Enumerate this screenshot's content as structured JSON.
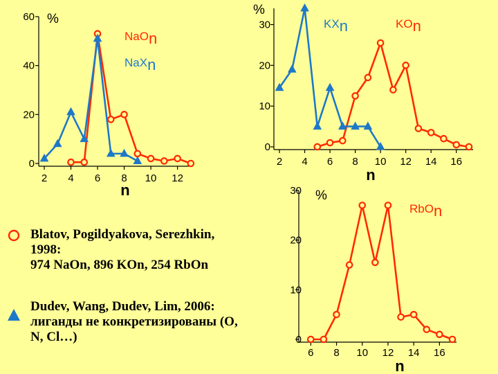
{
  "colors": {
    "red": "#ff2a00",
    "blue": "#1e78c8",
    "background": "#ffff99"
  },
  "chart_data": [
    {
      "type": "line",
      "y_unit_label": "%",
      "xlabel": "n",
      "x_ticks": [
        2,
        4,
        6,
        8,
        10,
        12
      ],
      "y_ticks": [
        0,
        20,
        40,
        60
      ],
      "xlim": [
        2,
        12.8
      ],
      "ylim": [
        0,
        60
      ],
      "legend_labels": [
        {
          "base": "NaO",
          "sub": "n",
          "color": "red"
        },
        {
          "base": "NaX",
          "sub": "n",
          "color": "blue"
        }
      ],
      "series": [
        {
          "name": "NaOn",
          "color": "red",
          "marker": "circle",
          "x": [
            4,
            5,
            6,
            7,
            8,
            9,
            10,
            11,
            12,
            13
          ],
          "y": [
            0.5,
            0.5,
            53,
            18,
            20,
            4,
            2,
            1,
            2,
            0
          ]
        },
        {
          "name": "NaXn",
          "color": "blue",
          "marker": "triangle",
          "x": [
            2,
            3,
            4,
            5,
            6,
            7,
            8,
            9
          ],
          "y": [
            2,
            8,
            21,
            10,
            51,
            4,
            4,
            1
          ]
        }
      ]
    },
    {
      "type": "line",
      "y_unit_label": "%",
      "xlabel": "n",
      "x_ticks": [
        2,
        4,
        6,
        8,
        10,
        12,
        14,
        16
      ],
      "y_ticks": [
        0,
        10,
        20,
        30
      ],
      "xlim": [
        2,
        17
      ],
      "ylim": [
        0,
        34
      ],
      "legend_labels": [
        {
          "base": "KX",
          "sub": "n",
          "color": "blue"
        },
        {
          "base": "KO",
          "sub": "n",
          "color": "red"
        }
      ],
      "series": [
        {
          "name": "KOn",
          "color": "red",
          "marker": "circle",
          "x": [
            5,
            6,
            7,
            8,
            9,
            10,
            11,
            12,
            13,
            14,
            15,
            16,
            17
          ],
          "y": [
            0,
            1,
            1.5,
            12.5,
            17,
            25.5,
            14,
            20,
            4.5,
            3.5,
            2,
            0.5,
            0
          ]
        },
        {
          "name": "KXn",
          "color": "blue",
          "marker": "triangle",
          "x": [
            2,
            3,
            4,
            5,
            6,
            7,
            8,
            9,
            10
          ],
          "y": [
            14.5,
            19,
            34,
            5,
            14.5,
            5,
            5,
            5,
            0
          ]
        }
      ]
    },
    {
      "type": "line",
      "y_unit_label": "%",
      "xlabel": "n",
      "x_ticks": [
        6,
        8,
        10,
        12,
        14,
        16
      ],
      "y_ticks": [
        0,
        10,
        20,
        30
      ],
      "xlim": [
        5.5,
        17
      ],
      "ylim": [
        0,
        30
      ],
      "legend_labels": [
        {
          "base": "RbO",
          "sub": "n",
          "color": "red"
        }
      ],
      "series": [
        {
          "name": "RbOn",
          "color": "red",
          "marker": "circle",
          "x": [
            6,
            7,
            8,
            9,
            10,
            11,
            12,
            13,
            14,
            15,
            16,
            17
          ],
          "y": [
            0,
            0,
            5,
            15,
            27,
            15.5,
            27,
            4.5,
            5,
            2,
            1,
            0
          ]
        }
      ]
    }
  ],
  "references": [
    {
      "marker": "circle",
      "color": "red",
      "line1": "Blatov, Pogildyakova, Serezhkin,",
      "line2": "1998:",
      "line3": "974 NaOn, 896 KOn, 254 RbOn"
    },
    {
      "marker": "triangle",
      "color": "blue",
      "line1": "Dudev, Wang, Dudev, Lim, 2006:",
      "line2": "лиганды не конкретизированы (O,",
      "line3": "N, Cl…)"
    }
  ]
}
